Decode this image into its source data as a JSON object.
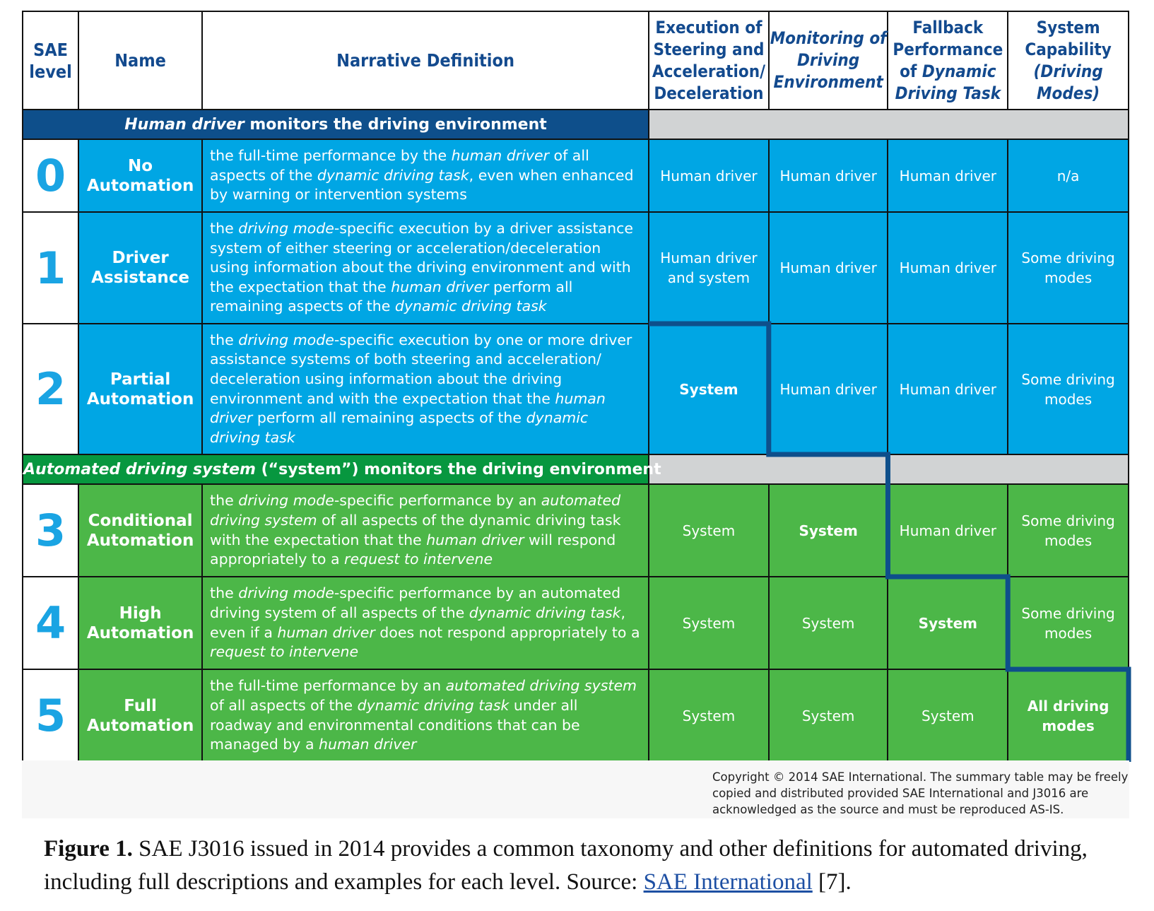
{
  "table": {
    "headers": {
      "sae_level": "SAE level",
      "name": "Name",
      "narrative": "Narrative Definition",
      "execution": "Execution of Steering and Acceleration/ Deceleration",
      "monitoring": "Monitoring of Driving Environment",
      "fallback_a": "Fallback Performance of ",
      "fallback_b": "Dynamic Driving Task",
      "capability_a": "System Capability ",
      "capability_b": "(Driving Modes)"
    },
    "band_human": {
      "italic": "Human driver",
      "rest": " monitors the driving environment"
    },
    "band_auto": {
      "italic": "Automated driving system",
      "rest": " (“system”) monitors the driving environment"
    },
    "rows": [
      {
        "level": "0",
        "name_a": "No",
        "name_b": "Automation",
        "def": [
          {
            "t": "the full-time performance by the "
          },
          {
            "i": "human driver"
          },
          {
            "t": " of all aspects of the "
          },
          {
            "i": "dynamic driving task"
          },
          {
            "t": ", even when enhanced by warning or intervention systems"
          }
        ],
        "execution": "Human driver",
        "monitoring": "Human driver",
        "fallback": "Human driver",
        "capability": "n/a"
      },
      {
        "level": "1",
        "name_a": "Driver",
        "name_b": "Assistance",
        "def": [
          {
            "t": "the "
          },
          {
            "i": "driving mode"
          },
          {
            "t": "-specific execution by a driver assistance system of either steering or acceleration/deceleration using information about the driving environment and with the expectation that the "
          },
          {
            "i": "human driver"
          },
          {
            "t": " perform all remaining aspects of the "
          },
          {
            "i": "dynamic driving task"
          }
        ],
        "execution": "Human driver and system",
        "monitoring": "Human driver",
        "fallback": "Human driver",
        "capability": "Some driving modes"
      },
      {
        "level": "2",
        "name_a": "Partial",
        "name_b": "Automation",
        "def": [
          {
            "t": "the "
          },
          {
            "i": "driving mode"
          },
          {
            "t": "-specific execution by one or more driver assistance systems of both steering and acceleration/ deceleration using information about the driving environment and with the expectation that the "
          },
          {
            "i": "human driver"
          },
          {
            "t": " perform all remaining aspects of the "
          },
          {
            "i": "dynamic driving task"
          }
        ],
        "execution": "System",
        "monitoring": "Human driver",
        "fallback": "Human driver",
        "capability": "Some driving modes"
      },
      {
        "level": "3",
        "name_a": "Conditional",
        "name_b": "Automation",
        "def": [
          {
            "t": "the "
          },
          {
            "i": "driving mode"
          },
          {
            "t": "-specific performance by an "
          },
          {
            "i": "automated driving system"
          },
          {
            "t": " of all aspects of the dynamic driving task with the expectation that the "
          },
          {
            "i": "human driver"
          },
          {
            "t": " will respond appropriately to a "
          },
          {
            "i": "request to intervene"
          }
        ],
        "execution": "System",
        "monitoring": "System",
        "fallback": "Human driver",
        "capability": "Some driving modes"
      },
      {
        "level": "4",
        "name_a": "High",
        "name_b": "Automation",
        "def": [
          {
            "t": "the "
          },
          {
            "i": "driving mode"
          },
          {
            "t": "-specific performance by an automated driving system of all aspects of the "
          },
          {
            "i": "dynamic driving task"
          },
          {
            "t": ", even if a "
          },
          {
            "i": "human driver"
          },
          {
            "t": " does not respond appropriately to a "
          },
          {
            "i": "request to intervene"
          }
        ],
        "execution": "System",
        "monitoring": "System",
        "fallback": "System",
        "capability": "Some driving modes"
      },
      {
        "level": "5",
        "name_a": "Full",
        "name_b": "Automation",
        "def": [
          {
            "t": "the full-time performance by an "
          },
          {
            "i": "automated driving system"
          },
          {
            "t": " of all aspects of the "
          },
          {
            "i": "dynamic driving task"
          },
          {
            "t": " under all roadway and environmental conditions that can be managed by a "
          },
          {
            "i": "human driver"
          }
        ],
        "execution": "System",
        "monitoring": "System",
        "fallback": "System",
        "capability": "All driving modes"
      }
    ]
  },
  "copyright": "Copyright © 2014 SAE International.  The summary table may be freely copied and distributed provided SAE International and J3016 are acknowledged as the source and must be reproduced AS-IS.",
  "caption": {
    "label": "Figure 1.",
    "text": " SAE J3016 issued in 2014 provides a common taxonomy and other definitions for automated driving, including full descriptions and examples for each level. Source: ",
    "link": "SAE International",
    "ref": " [7]."
  },
  "colors": {
    "human_blue": "#00a6e4",
    "auto_green": "#4cb748",
    "band_human": "#0e4f8b",
    "band_auto": "#07973f",
    "header_text": "#134a8e",
    "staircase_line": "#0e4f8b"
  }
}
